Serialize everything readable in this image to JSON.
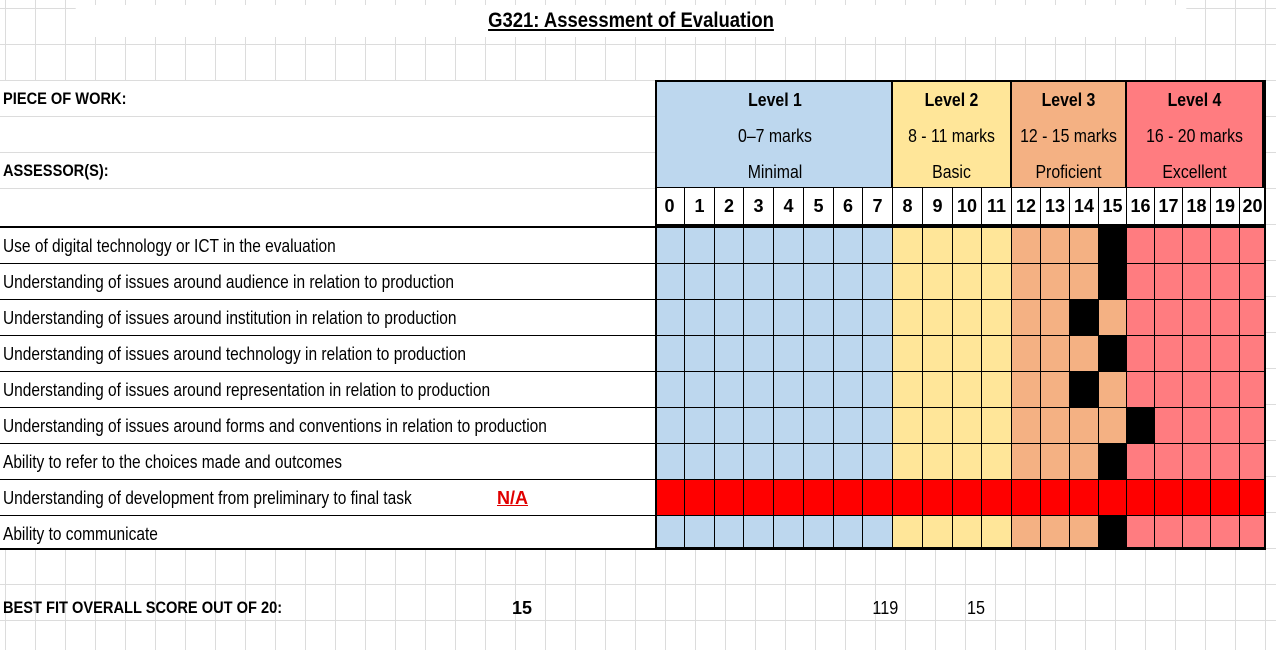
{
  "title": "G321:  Assessment of Evaluation",
  "labels": {
    "piece_of_work": "PIECE OF WORK:",
    "assessors": "ASSESSOR(S):"
  },
  "levels": [
    {
      "name": "Level 1",
      "marks": "0–7 marks",
      "desc": "Minimal",
      "scores": [
        0,
        1,
        2,
        3,
        4,
        5,
        6,
        7
      ],
      "color": "#bdd7ee"
    },
    {
      "name": "Level 2",
      "marks": "8 - 11 marks",
      "desc": "Basic",
      "scores": [
        8,
        9,
        10,
        11
      ],
      "color": "#ffe699"
    },
    {
      "name": "Level 3",
      "marks": "12 - 15 marks",
      "desc": "Proficient",
      "scores": [
        12,
        13,
        14,
        15
      ],
      "color": "#f4b183"
    },
    {
      "name": "Level 4",
      "marks": "16 - 20 marks",
      "desc": "Excellent",
      "scores": [
        16,
        17,
        18,
        19,
        20
      ],
      "color": "#ff7c80"
    }
  ],
  "criteria": [
    {
      "text": "Use of digital technology or ICT in the evaluation",
      "score": 15,
      "na": null
    },
    {
      "text": "Understanding of issues around audience in relation to production",
      "score": 15,
      "na": null
    },
    {
      "text": "Understanding of issues around institution in relation to production",
      "score": 14,
      "na": null
    },
    {
      "text": "Understanding of issues around technology in relation to production",
      "score": 15,
      "na": null
    },
    {
      "text": "Understanding of issues around representation in relation to production",
      "score": 14,
      "na": null
    },
    {
      "text": "Understanding of issues around forms and conventions in relation to production",
      "score": 16,
      "na": null
    },
    {
      "text": "Ability to refer to the choices made and outcomes",
      "score": 15,
      "na": null
    },
    {
      "text": "Understanding of development from preliminary to final task",
      "score": null,
      "na": "N/A"
    },
    {
      "text": "Ability to communicate",
      "score": 15,
      "na": null
    }
  ],
  "colors": {
    "selected": "#000000",
    "na_row": "#ff0000",
    "na_text": "#e00000"
  },
  "footer": {
    "label": "BEST FIT OVERALL SCORE OUT OF 20:",
    "score": "15",
    "sum": "119",
    "avg": "15"
  }
}
